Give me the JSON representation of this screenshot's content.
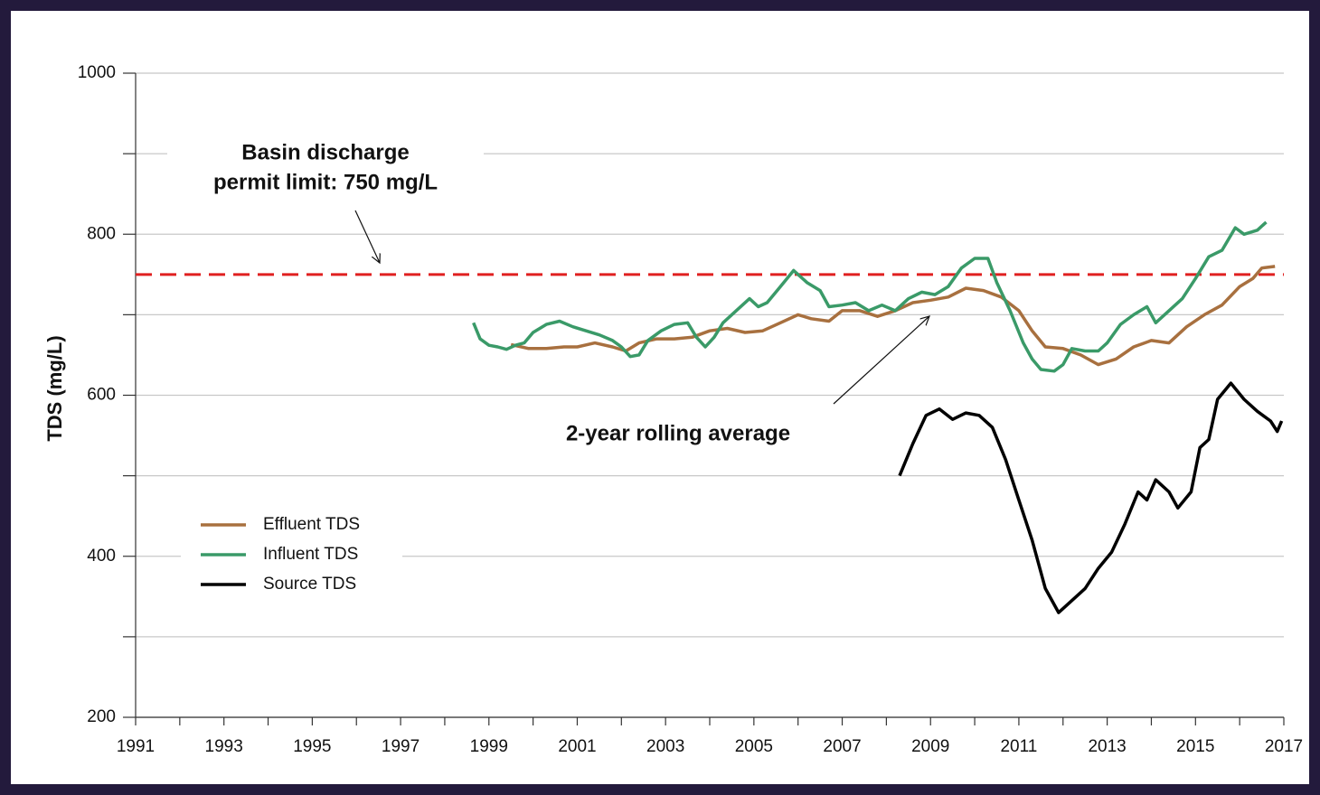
{
  "chart_data": {
    "type": "line",
    "ylabel": "TDS (mg/L)",
    "xlim": [
      1991,
      2017
    ],
    "xticks": [
      1991,
      1993,
      1995,
      1997,
      1999,
      2001,
      2003,
      2005,
      2007,
      2009,
      2011,
      2013,
      2015,
      2017
    ],
    "xminor": [
      1992,
      1994,
      1996,
      1998,
      2000,
      2002,
      2004,
      2006,
      2008,
      2010,
      2012,
      2014,
      2016
    ],
    "ylim": [
      200,
      1000
    ],
    "yticks": [
      200,
      400,
      600,
      800,
      1000
    ],
    "yminor": [
      300,
      500,
      700,
      900
    ],
    "grid": true,
    "hline": {
      "value": 750,
      "color": "#e02020"
    },
    "annotations": [
      "Basin discharge",
      "permit limit: 750 mg/L",
      "2-year rolling average"
    ],
    "series": [
      {
        "name": "Effluent TDS",
        "color": "#a8703f",
        "x": [
          1999.5,
          1999.9,
          2000.3,
          2000.7,
          2001.0,
          2001.4,
          2001.8,
          2002.1,
          2002.4,
          2002.8,
          2003.2,
          2003.6,
          2004.0,
          2004.4,
          2004.8,
          2005.2,
          2005.6,
          2006.0,
          2006.3,
          2006.7,
          2007.0,
          2007.4,
          2007.8,
          2008.2,
          2008.6,
          2009.0,
          2009.4,
          2009.8,
          2010.2,
          2010.6,
          2011.0,
          2011.3,
          2011.6,
          2012.0,
          2012.4,
          2012.8,
          2013.2,
          2013.6,
          2014.0,
          2014.4,
          2014.8,
          2015.2,
          2015.6,
          2016.0,
          2016.3,
          2016.5,
          2016.8
        ],
        "values": [
          663,
          658,
          658,
          660,
          660,
          665,
          660,
          655,
          665,
          670,
          670,
          672,
          680,
          683,
          678,
          680,
          690,
          700,
          695,
          692,
          705,
          705,
          698,
          705,
          715,
          718,
          722,
          733,
          730,
          722,
          705,
          680,
          660,
          658,
          650,
          638,
          645,
          660,
          668,
          665,
          685,
          700,
          712,
          735,
          745,
          758,
          760
        ]
      },
      {
        "name": "Influent TDS",
        "color": "#3a9a68",
        "x": [
          1998.65,
          1998.8,
          1999.0,
          1999.2,
          1999.4,
          1999.6,
          1999.8,
          2000.0,
          2000.3,
          2000.6,
          2000.9,
          2001.2,
          2001.5,
          2001.8,
          2002.0,
          2002.2,
          2002.4,
          2002.6,
          2002.9,
          2003.2,
          2003.5,
          2003.7,
          2003.9,
          2004.1,
          2004.3,
          2004.6,
          2004.9,
          2005.1,
          2005.3,
          2005.6,
          2005.9,
          2006.2,
          2006.5,
          2006.7,
          2007.0,
          2007.3,
          2007.6,
          2007.9,
          2008.2,
          2008.5,
          2008.8,
          2009.1,
          2009.4,
          2009.7,
          2010.0,
          2010.3,
          2010.5,
          2010.8,
          2011.1,
          2011.3,
          2011.5,
          2011.8,
          2012.0,
          2012.2,
          2012.5,
          2012.8,
          2013.0,
          2013.3,
          2013.6,
          2013.9,
          2014.1,
          2014.4,
          2014.7,
          2015.0,
          2015.3,
          2015.6,
          2015.9,
          2016.1,
          2016.4,
          2016.6
        ],
        "values": [
          690,
          670,
          662,
          660,
          657,
          662,
          665,
          678,
          688,
          692,
          685,
          680,
          675,
          668,
          660,
          648,
          650,
          668,
          680,
          688,
          690,
          672,
          660,
          672,
          690,
          705,
          720,
          710,
          715,
          735,
          755,
          740,
          730,
          710,
          712,
          715,
          705,
          712,
          705,
          720,
          728,
          725,
          735,
          758,
          770,
          770,
          740,
          705,
          665,
          645,
          632,
          630,
          638,
          658,
          655,
          655,
          665,
          688,
          700,
          710,
          690,
          705,
          720,
          745,
          772,
          780,
          808,
          800,
          805,
          815
        ]
      },
      {
        "name": "Source TDS",
        "color": "#000000",
        "x": [
          2008.3,
          2008.6,
          2008.9,
          2009.2,
          2009.5,
          2009.8,
          2010.1,
          2010.4,
          2010.7,
          2011.0,
          2011.3,
          2011.6,
          2011.9,
          2012.2,
          2012.5,
          2012.8,
          2013.1,
          2013.4,
          2013.7,
          2013.9,
          2014.1,
          2014.4,
          2014.6,
          2014.9,
          2015.1,
          2015.3,
          2015.5,
          2015.8,
          2016.1,
          2016.4,
          2016.7,
          2016.85,
          2016.95
        ],
        "values": [
          500,
          540,
          575,
          583,
          570,
          578,
          575,
          560,
          520,
          470,
          420,
          360,
          330,
          345,
          360,
          385,
          405,
          440,
          480,
          470,
          495,
          480,
          460,
          480,
          535,
          545,
          595,
          615,
          595,
          580,
          568,
          555,
          568
        ]
      }
    ]
  }
}
